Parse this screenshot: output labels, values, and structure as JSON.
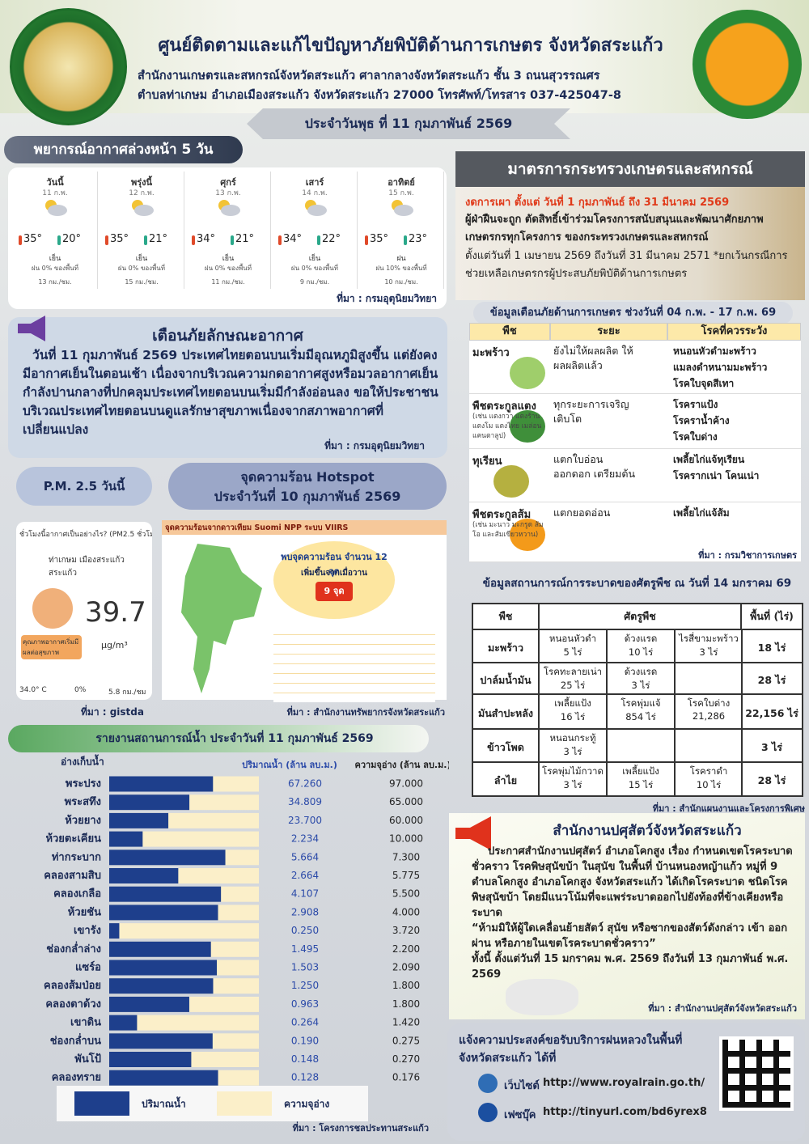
{
  "header": {
    "title": "ศูนย์ติดตามและแก้ไขปัญหาภัยพิบัติด้านการเกษตร จังหวัดสระแก้ว",
    "address": [
      "สำนักงานเกษตรและสหกรณ์จังหวัดสระแก้ว ศาลากลางจังหวัดสระแก้ว ชั้น 3 ถนนสุวรรณศร",
      "ตำบลท่าเกษม อำเภอเมืองสระแก้ว จังหวัดสระแก้ว 27000 โทรศัพท์/โทรสาร 037-425047-8"
    ],
    "date": "ประจำวันพุธ ที่ 11 กุมภาพันธ์ 2569"
  },
  "forecast": {
    "title": "พยากรณ์อากาศล่วงหน้า 5 วัน",
    "days": [
      {
        "day": "วันนี้",
        "date": "11 ก.พ.",
        "high": "35°",
        "low": "20°",
        "condition": "เย็น",
        "rain": "ฝน 0% ของพื้นที่",
        "wind": "13 กม./ชม."
      },
      {
        "day": "พรุ่งนี้",
        "date": "12 ก.พ.",
        "high": "35°",
        "low": "21°",
        "condition": "เย็น",
        "rain": "ฝน 0% ของพื้นที่",
        "wind": "15 กม./ชม."
      },
      {
        "day": "ศุกร์",
        "date": "13 ก.พ.",
        "high": "34°",
        "low": "21°",
        "condition": "เย็น",
        "rain": "ฝน 0% ของพื้นที่",
        "wind": "11 กม./ชม."
      },
      {
        "day": "เสาร์",
        "date": "14 ก.พ.",
        "high": "34°",
        "low": "22°",
        "condition": "เย็น",
        "rain": "ฝน 0% ของพื้นที่",
        "wind": "9 กม./ชม."
      },
      {
        "day": "อาทิตย์",
        "date": "15 ก.พ.",
        "high": "35°",
        "low": "23°",
        "condition": "ฝน",
        "rain": "ฝน 10% ของพื้นที่",
        "wind": "10 กม./ชม."
      }
    ],
    "source": "ที่มา : กรมอุตุนิยมวิทยา"
  },
  "warning": {
    "title": "เตือนภัยลักษณะอากาศ",
    "body": "วันที่ 11 กุมภาพันธ์ 2569 ประเทศไทยตอนบนเริ่มมีอุณหภูมิสูงขึ้น แต่ยังคงมีอากาศเย็นในตอนเช้า เนื่องจากบริเวณความกดอากาศสูงหรือมวลอากาศเย็นกำลังปานกลางที่ปกคลุมประเทศไทยตอนบนเริ่มมีกำลังอ่อนลง ขอให้ประชาชนบริเวณประเทศไทยตอนบนดูแลรักษาสุขภาพเนื่องจากสภาพอากาศที่เปลี่ยนแปลง",
    "source": "ที่มา : กรมอุตุนิยมวิทยา"
  },
  "pm25": {
    "title": "P.M. 2.5 วันนี้",
    "question": "ชั่วโมงนี้อากาศเป็นอย่างไร? (PM2.5 ชั่วโมงล่าสุด)",
    "location": "ท่าเกษม เมืองสระแก้ว สระแก้ว",
    "value": "39.7",
    "unit": "µg/m³",
    "status": "คุณภาพอากาศเริ่มมีผลต่อสุขภาพ",
    "temp": "34.0° C",
    "rain": "0%",
    "wind": "5.8 กม./ชม",
    "source": "ที่มา : gistda"
  },
  "hotspot": {
    "title": "จุดความร้อน Hotspot",
    "date": "ประจำวันที่ 10 กุมภาพันธ์ 2569",
    "map_title": "จุดความร้อนจากดาวเทียม Suomi NPP ระบบ VIIRS",
    "count": "พบจุดความร้อน จำนวน 12 จุด",
    "change": "เพิ่มขึ้นจากเมื่อวาน",
    "change_value": "9 จุด",
    "source": "ที่มา : สำนักงานทรัพยากรจังหวัดสระแก้ว"
  },
  "measures": {
    "title": "มาตรการกระทรวงเกษตรและสหกรณ์",
    "ban": "งดการเผา ตั้งแต่ วันที่ 1 กุมภาพันธ์ ถึง 31 มีนาคม 2569",
    "penalty": "ผู้ฝ่าฝืนจะถูก ตัดสิทธิ์เข้าร่วมโครงการสนับสนุนและพัฒนาศักยภาพเกษตรกรทุกโครงการ ของกระทรวงเกษตรและสหกรณ์",
    "period": "ตั้งแต่วันที่ 1 เมษายน 2569 ถึงวันที่ 31 มีนาคม 2571 *ยกเว้นกรณีการช่วยเหลือเกษตรกรผู้ประสบภัยพิบัติด้านการเกษตร"
  },
  "crop_warning": {
    "title": "ข้อมูลเตือนภัยด้านการเกษตร ช่วงวันที่ 04 ก.พ. - 17 ก.พ. 69",
    "headers": [
      "พืช",
      "ระยะ",
      "โรคที่ควรระวัง"
    ],
    "rows": [
      {
        "crop": "มะพร้าว",
        "stage": "ยังไม่ให้ผลผลิต ให้ผลผลิตแล้ว",
        "diseases": [
          "หนอนหัวดำมะพร้าว",
          "แมลงดำหนามมะพร้าว",
          "โรคใบจุดสีเทา"
        ]
      },
      {
        "crop": "พืชตระกูลแตง",
        "note": "(เช่น แตงกวา แตงร้าน แตงโม แตงไทย เมล่อน แคนตาลูป)",
        "stage": "ทุกระยะการเจริญเติบโต",
        "diseases": [
          "โรคราแป้ง",
          "โรคราน้ำค้าง",
          "โรคใบด่าง"
        ]
      },
      {
        "crop": "ทุเรียน",
        "stage": "แตกใบอ่อน ออกดอก เตรียมต้น",
        "diseases": [
          "เพลี้ยไก่แจ้ทุเรียน",
          "โรครากเน่า โคนเน่า"
        ]
      },
      {
        "crop": "พืชตระกูลส้ม",
        "note": "(เช่น มะนาว มะกรูด ส้มโอ และส้มเขียวหวาน)",
        "stage": "แตกยอดอ่อน",
        "diseases": [
          "เพลี้ยไก่แจ้ส้ม"
        ]
      }
    ],
    "source": "ที่มา : กรมวิชาการเกษตร"
  },
  "pest": {
    "title": "ข้อมูลสถานการณ์การระบาดของศัตรูพืช ณ วันที่ 14 มกราคม 69",
    "headers": [
      "พืช",
      "ศัตรูพืช",
      "พื้นที่ (ไร่)"
    ],
    "rows": [
      {
        "crop": "มะพร้าว",
        "pests": [
          {
            "name": "หนอนหัวดำ",
            "area": "5 ไร่"
          },
          {
            "name": "ด้วงแรด",
            "area": "10 ไร่"
          },
          {
            "name": "ไรสี่ขามะพร้าว",
            "area": "3 ไร่"
          }
        ],
        "total": "18 ไร่"
      },
      {
        "crop": "ปาล์มน้ำมัน",
        "pests": [
          {
            "name": "โรคทะลายเน่า",
            "area": "25 ไร่"
          },
          {
            "name": "ด้วงแรด",
            "area": "3 ไร่"
          }
        ],
        "total": "28 ไร่"
      },
      {
        "crop": "มันสำปะหลัง",
        "pests": [
          {
            "name": "เพลี้ยแป้ง",
            "area": "16 ไร่"
          },
          {
            "name": "โรคพุ่มแจ้",
            "area": "854 ไร่"
          },
          {
            "name": "โรคใบด่าง",
            "area": "21,286"
          }
        ],
        "total": "22,156 ไร่"
      },
      {
        "crop": "ข้าวโพด",
        "pests": [
          {
            "name": "หนอนกระทู้",
            "area": "3 ไร่"
          }
        ],
        "total": "3 ไร่"
      },
      {
        "crop": "ลำไย",
        "pests": [
          {
            "name": "โรคพุ่มไม้กวาด",
            "area": "3 ไร่"
          },
          {
            "name": "เพลี้ยแป้ง",
            "area": "15 ไร่"
          },
          {
            "name": "โรคราดำ",
            "area": "10 ไร่"
          }
        ],
        "total": "28 ไร่"
      }
    ],
    "source": "ที่มา : สำนักแผนงานและโครงการพิเศษ"
  },
  "livestock": {
    "title": "สำนักงานปศุสัตว์จังหวัดสระแก้ว",
    "body": "ประกาศสำนักงานปศุสัตว์ อำเภอโคกสูง เรื่อง กำหนดเขตโรคระบาดชั่วคราว โรคพิษสุนัขบ้า ในสุนัข ในพื้นที่ บ้านหนองหญ้าแก้ว หมู่ที่ 9 ตำบลโคกสูง อำเภอโคกสูง จังหวัดสระแก้ว ได้เกิดโรคระบาด ชนิดโรคพิษสุนัขบ้า โดยมีแนวโน้มที่จะแพร่ระบาดออกไปยังท้องที่ข้างเคียงหรือระบาด",
    "quote": "“ห้ามมิให้ผู้ใดเคลื่อนย้ายสัตว์ สุนัข หรือซากของสัตว์ดังกล่าว เข้า ออก ผ่าน หรือภายในเขตโรคระบาดชั่วคราว”",
    "period": "ทั้งนี้ ตั้งแต่วันที่ 15 มกราคม พ.ศ. 2569 ถึงวันที่ 13 กุมภาพันธ์ พ.ศ. 2569",
    "source": "ที่มา : สำนักงานปศุสัตว์จังหวัดสระแก้ว"
  },
  "royal_rain": {
    "title": "แจ้งความประสงค์ขอรับบริการฝนหลวงในพื้นที่ จังหวัดสระแก้ว ได้ที่",
    "website_label": "เว็บไซต์",
    "website": "http://www.royalrain.go.th/",
    "facebook_label": "เฟซบุ๊ค",
    "facebook": "http://tinyurl.com/bd6yrex8"
  },
  "chart_data": {
    "type": "bar",
    "title": "รายงานสถานการณ์น้ำ ประจำวันที่ 11 กุมภาพันธ์ 2569",
    "category_header": "อ่างเก็บน้ำ",
    "value_header": "ปริมาณน้ำ (ล้าน ลบ.ม.)",
    "capacity_header": "ความจุอ่าง (ล้าน ลบ.ม.)",
    "categories": [
      "พระปรง",
      "พระสทึง",
      "ห้วยยาง",
      "ห้วยตะเคียน",
      "ท่ากระบาก",
      "คลองสามสิบ",
      "คลองเกลือ",
      "ห้วยชัน",
      "เขารัง",
      "ช่องกล่ำล่าง",
      "แซร์อ",
      "คลองส้มป่อย",
      "คลองตาด้วง",
      "เขาดิน",
      "ช่องกล่ำบน",
      "พันโป้",
      "คลองทราย"
    ],
    "series": [
      {
        "name": "ปริมาณน้ำ",
        "color": "#1e3f8c",
        "values": [
          67.26,
          34.809,
          23.7,
          2.234,
          5.664,
          2.664,
          4.107,
          2.908,
          0.25,
          1.495,
          1.503,
          1.25,
          0.963,
          0.264,
          0.19,
          0.148,
          0.128
        ],
        "value_labels": [
          "67.260",
          "34.809",
          "23.700",
          "2.234",
          "5.664",
          "2.664",
          "4.107",
          "2.908",
          "0.250",
          "1.495",
          "1.503",
          "1.250",
          "0.963",
          "0.264",
          "0.190",
          "0.148",
          "0.128"
        ]
      },
      {
        "name": "ความจุอ่าง",
        "color": "#fbefc9",
        "values": [
          97,
          65,
          60,
          10,
          7.3,
          5.775,
          5.5,
          4,
          3.72,
          2.2,
          2.09,
          1.8,
          1.8,
          1.42,
          0.275,
          0.27,
          0.176
        ],
        "value_labels": [
          "97.000",
          "65.000",
          "60.000",
          "10.000",
          "7.300",
          "5.775",
          "5.500",
          "4.000",
          "3.720",
          "2.200",
          "2.090",
          "1.800",
          "1.800",
          "1.420",
          "0.275",
          "0.270",
          "0.176"
        ]
      }
    ],
    "source": "ที่มา : โครงการชลประทานสระแก้ว"
  }
}
